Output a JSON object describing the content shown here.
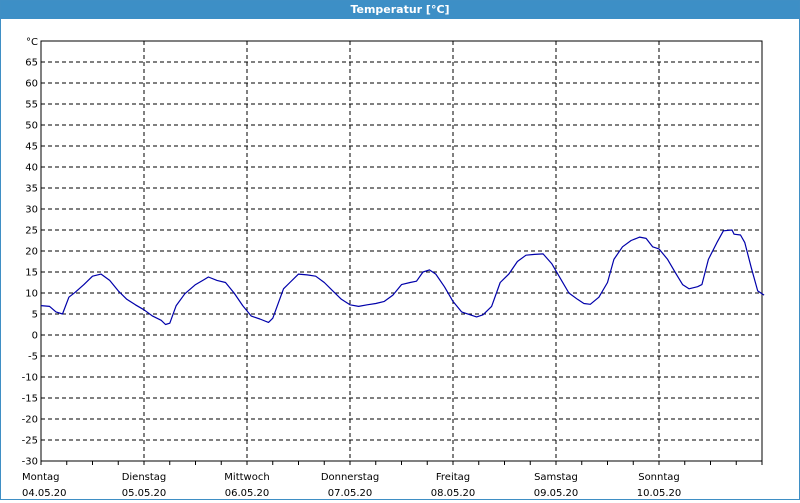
{
  "window": {
    "title": "Temperatur [°C]"
  },
  "chart_data": {
    "type": "line",
    "title": "Temperatur [°C]",
    "ylabel": "°C",
    "ylim": [
      -30,
      70
    ],
    "yticks": [
      65,
      60,
      55,
      50,
      45,
      40,
      35,
      30,
      25,
      20,
      15,
      10,
      5,
      0,
      -5,
      -10,
      -15,
      -20,
      -25,
      -30
    ],
    "grid": true,
    "xlim_days": 7,
    "x_categories": [
      {
        "day": "Montag",
        "date": "04.05.20"
      },
      {
        "day": "Dienstag",
        "date": "05.05.20"
      },
      {
        "day": "Mittwoch",
        "date": "06.05.20"
      },
      {
        "day": "Donnerstag",
        "date": "07.05.20"
      },
      {
        "day": "Freitag",
        "date": "08.05.20"
      },
      {
        "day": "Samstag",
        "date": "09.05.20"
      },
      {
        "day": "Sonntag",
        "date": "10.05.20"
      }
    ],
    "series": [
      {
        "color": "#0000aa",
        "points": [
          [
            "04.05.20 00:00",
            7.0
          ],
          [
            "04.05.20 02:00",
            6.8
          ],
          [
            "04.05.20 03:30",
            5.5
          ],
          [
            "04.05.20 05:00",
            5.0
          ],
          [
            "04.05.20 06:30",
            9.0
          ],
          [
            "04.05.20 08:00",
            10.2
          ],
          [
            "04.05.20 10:00",
            12.0
          ],
          [
            "04.05.20 12:00",
            14.0
          ],
          [
            "04.05.20 14:00",
            14.5
          ],
          [
            "04.05.20 16:00",
            13.0
          ],
          [
            "04.05.20 18:00",
            10.5
          ],
          [
            "04.05.20 20:00",
            8.5
          ],
          [
            "04.05.20 22:00",
            7.2
          ],
          [
            "05.05.20 00:00",
            6.0
          ],
          [
            "05.05.20 02:00",
            4.5
          ],
          [
            "05.05.20 04:00",
            3.5
          ],
          [
            "05.05.20 05:00",
            2.5
          ],
          [
            "05.05.20 06:00",
            2.8
          ],
          [
            "05.05.20 07:30",
            7.0
          ],
          [
            "05.05.20 09:30",
            9.8
          ],
          [
            "05.05.20 12:00",
            12.0
          ],
          [
            "05.05.20 14:00",
            13.2
          ],
          [
            "05.05.20 15:00",
            13.8
          ],
          [
            "05.05.20 17:00",
            13.0
          ],
          [
            "05.05.20 19:00",
            12.5
          ],
          [
            "05.05.20 21:00",
            10.0
          ],
          [
            "05.05.20 23:00",
            7.0
          ],
          [
            "06.05.20 01:00",
            4.5
          ],
          [
            "06.05.20 03:00",
            3.8
          ],
          [
            "06.05.20 05:00",
            3.0
          ],
          [
            "06.05.20 06:00",
            4.0
          ],
          [
            "06.05.20 08:30",
            11.0
          ],
          [
            "06.05.20 10:00",
            12.5
          ],
          [
            "06.05.20 12:00",
            14.5
          ],
          [
            "06.05.20 14:00",
            14.3
          ],
          [
            "06.05.20 16:00",
            14.0
          ],
          [
            "06.05.20 18:00",
            12.5
          ],
          [
            "06.05.20 20:00",
            10.5
          ],
          [
            "06.05.20 22:00",
            8.5
          ],
          [
            "07.05.20 00:00",
            7.2
          ],
          [
            "07.05.20 02:00",
            6.8
          ],
          [
            "07.05.20 04:00",
            7.2
          ],
          [
            "07.05.20 06:00",
            7.5
          ],
          [
            "07.05.20 08:00",
            8.0
          ],
          [
            "07.05.20 10:00",
            9.5
          ],
          [
            "07.05.20 12:00",
            12.0
          ],
          [
            "07.05.20 14:00",
            12.5
          ],
          [
            "07.05.20 15:30",
            12.8
          ],
          [
            "07.05.20 17:00",
            15.0
          ],
          [
            "07.05.20 18:30",
            15.5
          ],
          [
            "07.05.20 20:00",
            14.5
          ],
          [
            "07.05.20 22:00",
            11.5
          ],
          [
            "08.05.20 00:00",
            8.0
          ],
          [
            "08.05.20 02:00",
            5.5
          ],
          [
            "08.05.20 04:00",
            4.8
          ],
          [
            "08.05.20 05:30",
            4.3
          ],
          [
            "08.05.20 07:00",
            4.8
          ],
          [
            "08.05.20 09:00",
            6.8
          ],
          [
            "08.05.20 11:00",
            12.5
          ],
          [
            "08.05.20 13:00",
            14.5
          ],
          [
            "08.05.20 15:00",
            17.5
          ],
          [
            "08.05.20 17:00",
            19.0
          ],
          [
            "08.05.20 19:00",
            19.2
          ],
          [
            "08.05.20 21:00",
            19.3
          ],
          [
            "08.05.20 23:00",
            17.0
          ],
          [
            "09.05.20 01:00",
            13.5
          ],
          [
            "09.05.20 03:00",
            10.0
          ],
          [
            "09.05.20 05:00",
            8.5
          ],
          [
            "09.05.20 06:30",
            7.5
          ],
          [
            "09.05.20 08:00",
            7.3
          ],
          [
            "09.05.20 10:00",
            9.0
          ],
          [
            "09.05.20 12:00",
            12.5
          ],
          [
            "09.05.20 13:30",
            18.0
          ],
          [
            "09.05.20 15:30",
            21.0
          ],
          [
            "09.05.20 17:30",
            22.5
          ],
          [
            "09.05.20 19:30",
            23.3
          ],
          [
            "09.05.20 21:00",
            23.0
          ],
          [
            "09.05.20 22:30",
            21.0
          ],
          [
            "10.05.20 00:00",
            20.5
          ],
          [
            "10.05.20 02:00",
            18.0
          ],
          [
            "10.05.20 04:00",
            14.5
          ],
          [
            "10.05.20 05:30",
            12.0
          ],
          [
            "10.05.20 07:00",
            11.0
          ],
          [
            "10.05.20 09:00",
            11.5
          ],
          [
            "10.05.20 10:00",
            12.0
          ],
          [
            "10.05.20 11:30",
            18.0
          ],
          [
            "10.05.20 13:30",
            22.0
          ],
          [
            "10.05.20 15:00",
            24.8
          ],
          [
            "10.05.20 17:00",
            25.0
          ],
          [
            "10.05.20 17:30",
            24.0
          ],
          [
            "10.05.20 19:00",
            23.8
          ],
          [
            "10.05.20 20:00",
            22.0
          ],
          [
            "10.05.20 21:30",
            16.0
          ],
          [
            "10.05.20 23:00",
            10.5
          ],
          [
            "11.05.20 00:30",
            9.5
          ]
        ]
      }
    ]
  }
}
